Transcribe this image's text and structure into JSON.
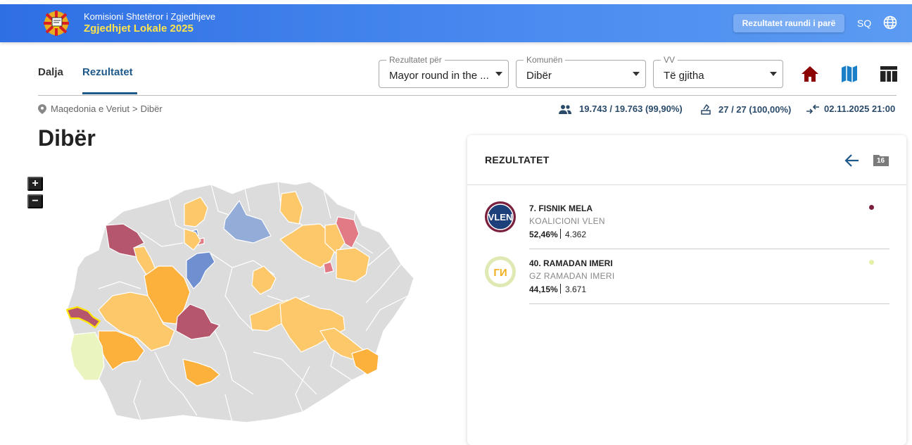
{
  "header": {
    "org": "Komisioni Shtetëror i Zgjedhjeve",
    "election": "Zgjedhjet Lokale 2025",
    "round_button": "Rezultatet raundi i parë",
    "language": "SQ"
  },
  "nav": {
    "tabs": [
      {
        "label": "Dalja",
        "active": false
      },
      {
        "label": "Rezultatet",
        "active": true
      }
    ]
  },
  "filters": {
    "results_for": {
      "legend": "Rezultatet për",
      "value": "Mayor round in the ..."
    },
    "municipality": {
      "legend": "Komunën",
      "value": "Dibër"
    },
    "polling_station": {
      "legend": "VV",
      "value": "Të gjitha"
    }
  },
  "breadcrumb": {
    "root": "Maqedonia e Veriut",
    "sep": ">",
    "current": "Dibër"
  },
  "stats": {
    "voters": "19.743 / 19.763 (99,90%)",
    "stations": "27 / 27 (100,00%)",
    "updated": "02.11.2025 21:00"
  },
  "page_title": "Dibër",
  "map_controls": {
    "zoom_in": "+",
    "zoom_out": "−"
  },
  "results_panel": {
    "title": "REZULTATET",
    "folder_badge": "16",
    "candidates": [
      {
        "name": "7. FISNIK MELA",
        "party": "KOALICIONI VLEN",
        "percent": "52,46%",
        "votes": "4.362",
        "color": "#7a1f3d",
        "avatar_text": "VLEN"
      },
      {
        "name": "40. RAMADAN IMERI",
        "party": "GZ RAMADAN IMERI",
        "percent": "44,15%",
        "votes": "3.671",
        "color": "#e4f0a8",
        "avatar_text": "ГИ"
      }
    ]
  },
  "colors": {
    "primary": "#1f5a8a",
    "header_blue": "#3a7ce8",
    "accent_yellow": "#ffe34d",
    "map_orange": "#fbb13c",
    "map_light_orange": "#fdc86a",
    "map_red": "#b5566c",
    "map_blue": "#6f8fd0",
    "map_gray": "#dcdcdc"
  }
}
